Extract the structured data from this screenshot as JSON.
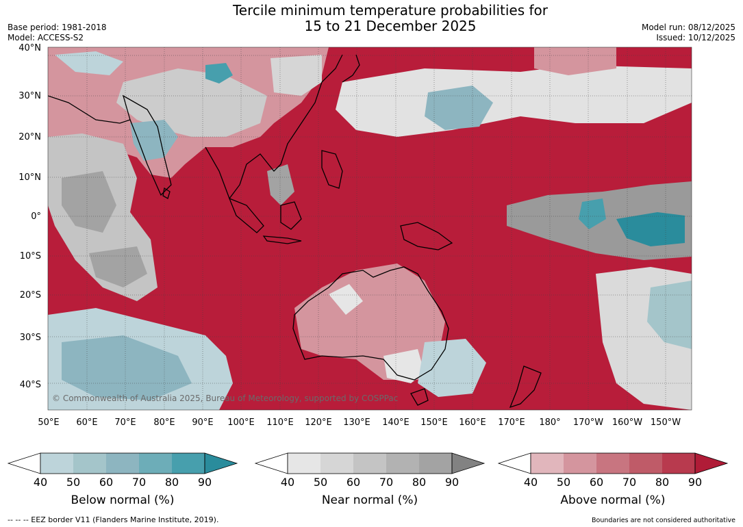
{
  "title": {
    "line1": "Tercile minimum temperature probabilities for",
    "line2": "15 to 21 December 2025"
  },
  "meta_left": {
    "base_period": "Base period: 1981-2018",
    "model": "Model: ACCESS-S2"
  },
  "meta_right": {
    "model_run": "Model run: 08/12/2025",
    "issued": "Issued: 10/12/2025"
  },
  "map": {
    "lat_labels": [
      "40°N",
      "30°N",
      "20°N",
      "10°N",
      "0°",
      "10°S",
      "20°S",
      "30°S",
      "40°S"
    ],
    "lon_labels": [
      "50°E",
      "60°E",
      "70°E",
      "80°E",
      "90°E",
      "100°E",
      "110°E",
      "120°E",
      "130°E",
      "140°E",
      "150°E",
      "160°E",
      "170°E",
      "180°",
      "170°W",
      "160°W",
      "150°W"
    ],
    "copyright": "© Commonwealth of Australia 2025, Bureau of Meteorology, supported by COSPPac",
    "background_color": "#b81d3a"
  },
  "colorbars": [
    {
      "title": "Below normal (%)",
      "ticks": [
        "40",
        "50",
        "60",
        "70",
        "80",
        "90"
      ],
      "colors": [
        "#bdd4da",
        "#a4c5ca",
        "#8db5c0",
        "#6dadb8",
        "#479fad",
        "#2a8c9c"
      ]
    },
    {
      "title": "Near normal (%)",
      "ticks": [
        "40",
        "50",
        "60",
        "70",
        "80",
        "90"
      ],
      "colors": [
        "#e6e6e6",
        "#d6d6d6",
        "#c4c4c4",
        "#b2b2b2",
        "#a3a3a3",
        "#828282"
      ]
    },
    {
      "title": "Above normal (%)",
      "ticks": [
        "40",
        "50",
        "60",
        "70",
        "80",
        "90"
      ],
      "colors": [
        "#e1b6bc",
        "#d4959e",
        "#c87580",
        "#bf5b68",
        "#b83a4e",
        "#b01c37"
      ]
    }
  ],
  "footer": {
    "eez": "--  --  -- EEZ border V11 (Flanders Marine Institute, 2019).",
    "boundaries": "Boundaries are not considered authoritative"
  }
}
